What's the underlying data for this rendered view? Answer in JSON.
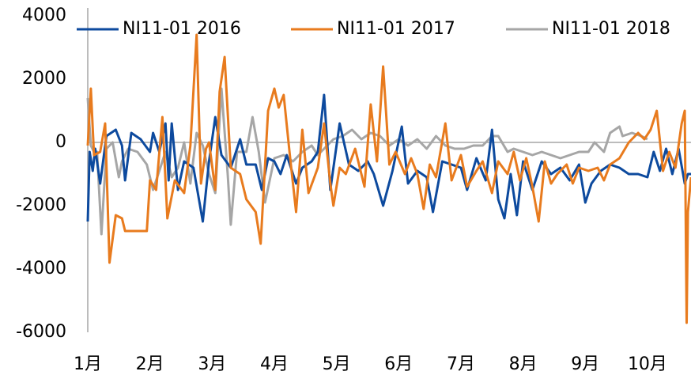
{
  "chart_data": {
    "type": "line",
    "xlim": [
      1,
      10.7
    ],
    "xticks": [
      {
        "value": 1,
        "label": "1月"
      },
      {
        "value": 2,
        "label": "2月"
      },
      {
        "value": 3,
        "label": "3月"
      },
      {
        "value": 4,
        "label": "4月"
      },
      {
        "value": 5,
        "label": "5月"
      },
      {
        "value": 6,
        "label": "6月"
      },
      {
        "value": 7,
        "label": "7月"
      },
      {
        "value": 8,
        "label": "8月"
      },
      {
        "value": 9,
        "label": "9月"
      },
      {
        "value": 10,
        "label": "10月"
      }
    ],
    "ylim": [
      -6000,
      4000
    ],
    "yticks": [
      -6000,
      -4000,
      -2000,
      0,
      2000,
      4000
    ],
    "grid": false,
    "legend": "top",
    "series": [
      {
        "name": "NI11-01 2016",
        "color": "#0d4a9e",
        "x": [
          1.0,
          1.03,
          1.08,
          1.12,
          1.2,
          1.3,
          1.45,
          1.55,
          1.6,
          1.7,
          1.85,
          2.0,
          2.05,
          2.15,
          2.25,
          2.3,
          2.35,
          2.45,
          2.55,
          2.7,
          2.85,
          2.95,
          3.05,
          3.15,
          3.3,
          3.45,
          3.55,
          3.7,
          3.8,
          3.9,
          4.0,
          4.1,
          4.2,
          4.35,
          4.45,
          4.6,
          4.7,
          4.8,
          4.9,
          5.05,
          5.2,
          5.35,
          5.5,
          5.6,
          5.75,
          5.9,
          6.05,
          6.15,
          6.3,
          6.45,
          6.55,
          6.7,
          6.85,
          7.0,
          7.1,
          7.25,
          7.4,
          7.5,
          7.6,
          7.7,
          7.8,
          7.9,
          8.0,
          8.15,
          8.3,
          8.45,
          8.6,
          8.75,
          8.9,
          9.0,
          9.1,
          9.25,
          9.4,
          9.55,
          9.7,
          9.85,
          10.0,
          10.1,
          10.2,
          10.3,
          10.4,
          10.5,
          10.6,
          10.65,
          10.7
        ],
        "values": [
          -2500,
          -300,
          -900,
          -200,
          -1300,
          200,
          400,
          -100,
          -1200,
          300,
          100,
          -300,
          300,
          -300,
          600,
          -1200,
          600,
          -1500,
          -600,
          -800,
          -2500,
          -600,
          800,
          -400,
          -800,
          100,
          -700,
          -700,
          -1500,
          -500,
          -600,
          -1000,
          -400,
          -1300,
          -800,
          -600,
          -300,
          1500,
          -1500,
          600,
          -700,
          -900,
          -600,
          -1000,
          -2000,
          -900,
          500,
          -1300,
          -900,
          -1100,
          -2200,
          -600,
          -700,
          -800,
          -1500,
          -500,
          -1200,
          400,
          -1800,
          -2400,
          -1000,
          -2300,
          -600,
          -1500,
          -600,
          -1000,
          -800,
          -1200,
          -700,
          -1900,
          -1300,
          -900,
          -700,
          -800,
          -1000,
          -1000,
          -1100,
          -300,
          -900,
          -200,
          -1000,
          -200,
          -1300,
          -1000,
          -1000
        ]
      },
      {
        "name": "NI11-01 2017",
        "color": "#e87b1e",
        "x": [
          1.0,
          1.05,
          1.1,
          1.2,
          1.28,
          1.35,
          1.45,
          1.55,
          1.6,
          1.8,
          1.95,
          2.0,
          2.1,
          2.2,
          2.28,
          2.4,
          2.55,
          2.65,
          2.75,
          2.82,
          2.9,
          2.95,
          3.05,
          3.12,
          3.2,
          3.3,
          3.45,
          3.55,
          3.7,
          3.78,
          3.9,
          4.0,
          4.07,
          4.15,
          4.25,
          4.35,
          4.45,
          4.55,
          4.7,
          4.8,
          4.9,
          4.95,
          5.05,
          5.15,
          5.3,
          5.45,
          5.55,
          5.65,
          5.75,
          5.85,
          5.95,
          6.1,
          6.2,
          6.3,
          6.4,
          6.5,
          6.6,
          6.75,
          6.85,
          7.0,
          7.1,
          7.25,
          7.35,
          7.5,
          7.6,
          7.75,
          7.85,
          7.95,
          8.05,
          8.15,
          8.25,
          8.35,
          8.45,
          8.55,
          8.7,
          8.8,
          8.9,
          9.05,
          9.2,
          9.3,
          9.4,
          9.55,
          9.7,
          9.85,
          9.95,
          10.05,
          10.15,
          10.25,
          10.35,
          10.45,
          10.55,
          10.6,
          10.63,
          10.65,
          10.7
        ],
        "values": [
          -100,
          1700,
          -400,
          -300,
          600,
          -3800,
          -2300,
          -2400,
          -2800,
          -2800,
          -2800,
          -1200,
          -1500,
          800,
          -2400,
          -1200,
          -1600,
          -100,
          3400,
          -1300,
          -200,
          0,
          -1500,
          1600,
          2700,
          -800,
          -1000,
          -1800,
          -2200,
          -3200,
          1000,
          1700,
          1100,
          1500,
          -400,
          -2200,
          400,
          -1600,
          -800,
          600,
          -1300,
          -2000,
          -800,
          -1000,
          -200,
          -1400,
          1200,
          -600,
          2400,
          -700,
          -300,
          -1000,
          -500,
          -1000,
          -2100,
          -700,
          -1100,
          600,
          -1200,
          -400,
          -1400,
          -900,
          -600,
          -1600,
          -600,
          -1000,
          -300,
          -1200,
          -500,
          -1400,
          -2500,
          -600,
          -1300,
          -1000,
          -700,
          -1300,
          -800,
          -900,
          -800,
          -1200,
          -700,
          -500,
          0,
          300,
          100,
          400,
          1000,
          -900,
          -300,
          -800,
          600,
          1000,
          -5700,
          -2200,
          -1100
        ]
      },
      {
        "name": "NI11-01 2018",
        "color": "#a6a6a6",
        "x": [
          1.0,
          1.05,
          1.1,
          1.15,
          1.22,
          1.3,
          1.4,
          1.5,
          1.55,
          1.65,
          1.8,
          1.95,
          2.05,
          2.15,
          2.25,
          2.35,
          2.45,
          2.55,
          2.65,
          2.75,
          2.85,
          2.95,
          3.05,
          3.15,
          3.25,
          3.3,
          3.4,
          3.55,
          3.65,
          3.75,
          3.85,
          4.0,
          4.15,
          4.3,
          4.45,
          4.6,
          4.7,
          4.8,
          4.95,
          5.1,
          5.25,
          5.4,
          5.55,
          5.7,
          5.85,
          6.0,
          6.15,
          6.3,
          6.45,
          6.6,
          6.75,
          6.9,
          7.05,
          7.2,
          7.35,
          7.5,
          7.6,
          7.75,
          7.85,
          8.0,
          8.15,
          8.3,
          8.45,
          8.6,
          8.75,
          8.9,
          9.05,
          9.15,
          9.3,
          9.4,
          9.55,
          9.6,
          9.75,
          9.9,
          10.0
        ],
        "values": [
          1400,
          -100,
          -300,
          -300,
          -2900,
          -200,
          0,
          -1100,
          -600,
          -200,
          -300,
          -700,
          -1500,
          -900,
          -300,
          -1100,
          -800,
          0,
          -1300,
          300,
          -100,
          -1000,
          -1600,
          1700,
          -1000,
          -2600,
          -300,
          -300,
          800,
          -300,
          -1900,
          -500,
          -400,
          -600,
          -300,
          -100,
          -400,
          -200,
          100,
          200,
          400,
          100,
          300,
          200,
          -100,
          100,
          -100,
          100,
          -200,
          200,
          -100,
          -200,
          -200,
          -100,
          -100,
          200,
          200,
          -300,
          -200,
          -300,
          -400,
          -300,
          -400,
          -500,
          -400,
          -300,
          -300,
          0,
          -300,
          300,
          500,
          200,
          300,
          200,
          100
        ]
      }
    ]
  }
}
